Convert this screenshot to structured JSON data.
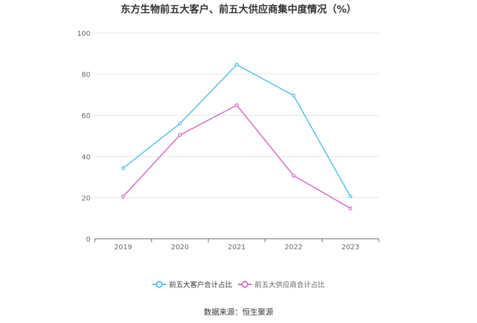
{
  "title": "东方生物前五大客户、前五大供应商集中度情况（%）",
  "source": "数据来源：恒生聚源",
  "chart_data": {
    "type": "line",
    "title": "东方生物前五大客户、前五大供应商集中度情况（%）",
    "categories": [
      "2019",
      "2020",
      "2021",
      "2022",
      "2023"
    ],
    "series": [
      {
        "name": "前五大客户合计占比",
        "values": [
          34.3,
          56.0,
          84.6,
          69.6,
          20.6
        ],
        "color": "#5bc0eb"
      },
      {
        "name": "前五大供应商合计占比",
        "values": [
          20.5,
          50.4,
          64.9,
          30.7,
          14.8
        ],
        "color": "#d96fbf"
      }
    ],
    "y_ticks": [
      "0",
      "20",
      "40",
      "60",
      "80",
      "100"
    ],
    "ylim": [
      0,
      100
    ],
    "grid": true,
    "legend_position": "bottom"
  }
}
